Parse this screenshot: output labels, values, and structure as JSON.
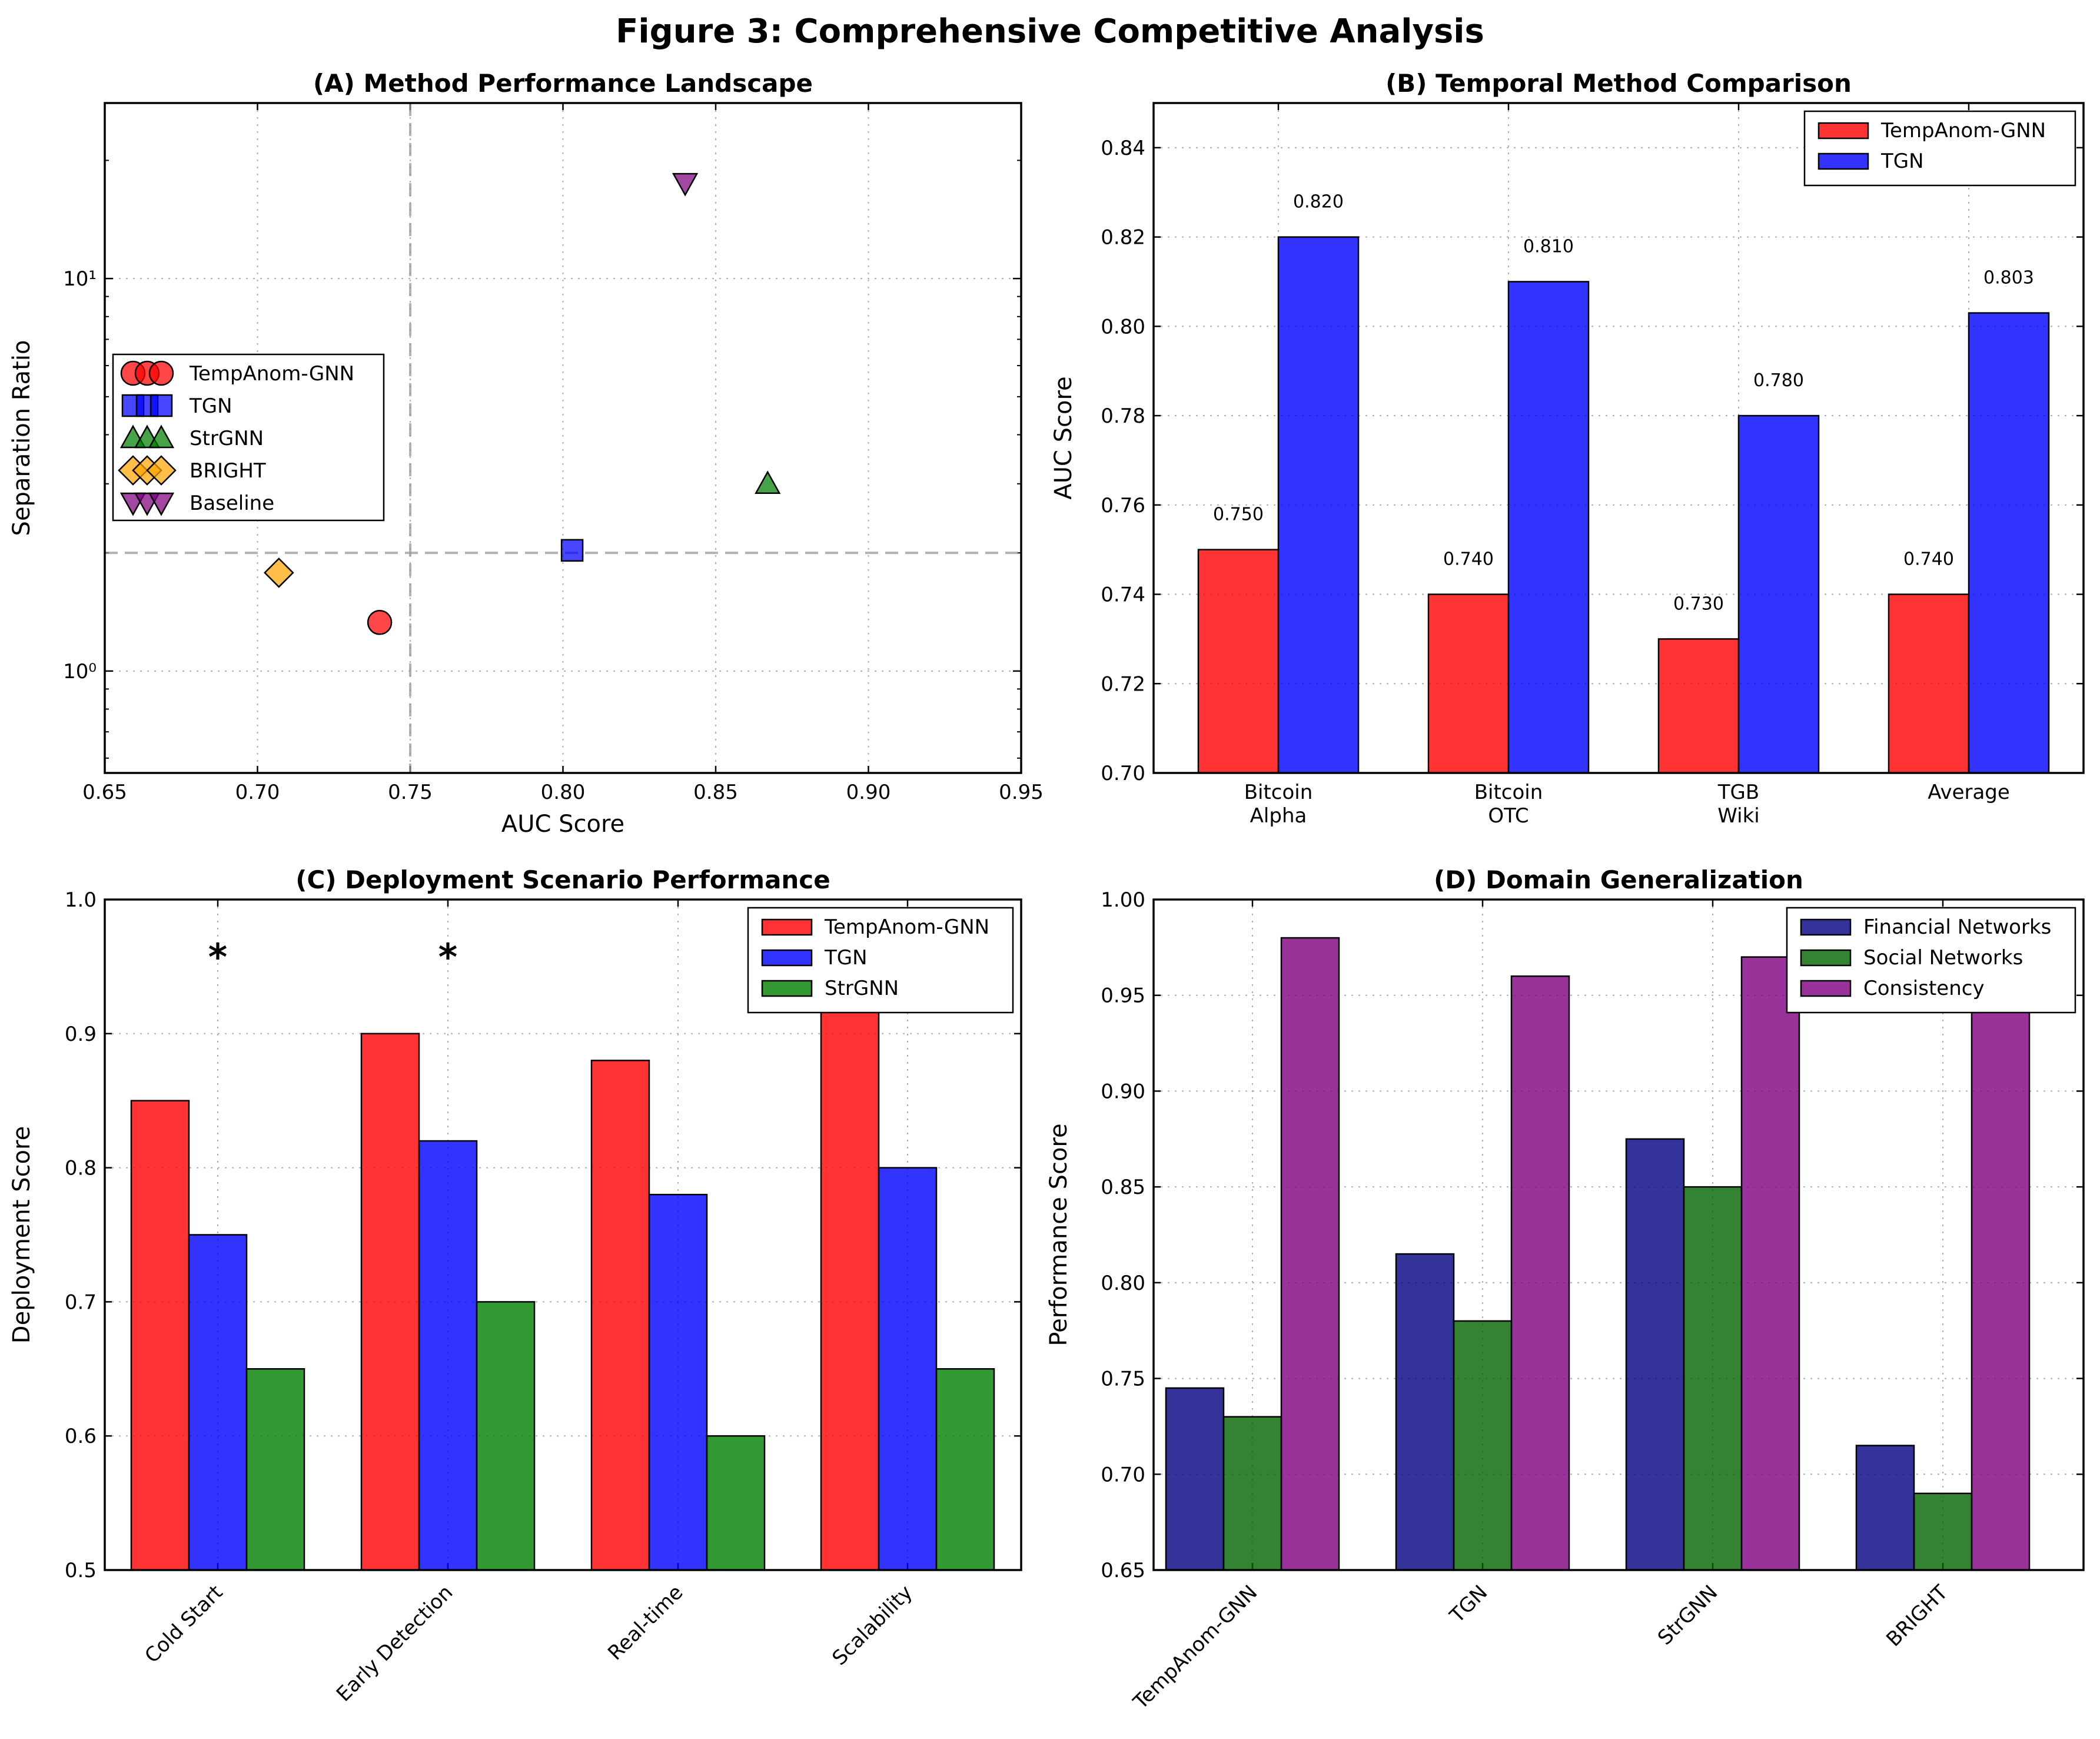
{
  "figure_title": "Figure 3: Comprehensive Competitive Analysis",
  "chart_data": [
    {
      "id": "A",
      "type": "scatter",
      "title": "(A) Method Performance Landscape",
      "xlabel": "AUC Score",
      "ylabel": "Separation Ratio",
      "xlim": [
        0.65,
        0.95
      ],
      "ylim": [
        0.55,
        28
      ],
      "yscale": "log",
      "xticks": [
        0.65,
        0.7,
        0.75,
        0.8,
        0.85,
        0.9,
        0.95
      ],
      "xtick_labels": [
        "0.65",
        "0.70",
        "0.75",
        "0.80",
        "0.85",
        "0.90",
        "0.95"
      ],
      "yticks": [
        1,
        10
      ],
      "ytick_labels": [
        "10⁰",
        "10¹"
      ],
      "grid": true,
      "legend": "center-left",
      "reference_lines": {
        "x": 0.75,
        "y": 2.0
      },
      "series": [
        {
          "name": "TempAnom-GNN",
          "x": 0.74,
          "y": 1.33,
          "marker": "circle",
          "color": "#ff0000"
        },
        {
          "name": "TGN",
          "x": 0.803,
          "y": 2.03,
          "marker": "square",
          "color": "#0000ff"
        },
        {
          "name": "StrGNN",
          "x": 0.867,
          "y": 3.0,
          "marker": "triangle-up",
          "color": "#008000"
        },
        {
          "name": "BRIGHT",
          "x": 0.707,
          "y": 1.78,
          "marker": "diamond",
          "color": "#ffa500"
        },
        {
          "name": "Baseline",
          "x": 0.84,
          "y": 17.5,
          "marker": "triangle-down",
          "color": "#800080"
        }
      ]
    },
    {
      "id": "B",
      "type": "bar",
      "title": "(B) Temporal Method Comparison",
      "xlabel": "",
      "ylabel": "AUC Score",
      "ylim": [
        0.7,
        0.85
      ],
      "yticks": [
        0.7,
        0.72,
        0.74,
        0.76,
        0.78,
        0.8,
        0.82,
        0.84
      ],
      "ytick_labels": [
        "0.70",
        "0.72",
        "0.74",
        "0.76",
        "0.78",
        "0.80",
        "0.82",
        "0.84"
      ],
      "grid": true,
      "legend": "top-right",
      "categories": [
        [
          "Bitcoin",
          "Alpha"
        ],
        [
          "Bitcoin",
          "OTC"
        ],
        [
          "TGB",
          "Wiki"
        ],
        [
          "Average"
        ]
      ],
      "series": [
        {
          "name": "TempAnom-GNN",
          "color": "#ff0000",
          "values": [
            0.75,
            0.74,
            0.73,
            0.74
          ],
          "labels": [
            "0.750",
            "0.740",
            "0.730",
            "0.740"
          ]
        },
        {
          "name": "TGN",
          "color": "#0000ff",
          "values": [
            0.82,
            0.81,
            0.78,
            0.803
          ],
          "labels": [
            "0.820",
            "0.810",
            "0.780",
            "0.803"
          ]
        }
      ]
    },
    {
      "id": "C",
      "type": "bar",
      "title": "(C) Deployment Scenario Performance",
      "xlabel": "",
      "ylabel": "Deployment Score",
      "ylim": [
        0.5,
        1.0
      ],
      "yticks": [
        0.5,
        0.6,
        0.7,
        0.8,
        0.9,
        1.0
      ],
      "ytick_labels": [
        "0.5",
        "0.6",
        "0.7",
        "0.8",
        "0.9",
        "1.0"
      ],
      "grid": true,
      "legend": "top-right",
      "categories": [
        "Cold Start",
        "Early Detection",
        "Real-time",
        "Scalability"
      ],
      "annotations": [
        {
          "category": 0,
          "text": "*",
          "y": 0.965
        },
        {
          "category": 1,
          "text": "*",
          "y": 0.965
        }
      ],
      "series": [
        {
          "name": "TempAnom-GNN",
          "color": "#ff0000",
          "values": [
            0.85,
            0.9,
            0.88,
            0.92
          ]
        },
        {
          "name": "TGN",
          "color": "#0000ff",
          "values": [
            0.75,
            0.82,
            0.78,
            0.8
          ]
        },
        {
          "name": "StrGNN",
          "color": "#008000",
          "values": [
            0.65,
            0.7,
            0.6,
            0.65
          ]
        }
      ]
    },
    {
      "id": "D",
      "type": "bar",
      "title": "(D) Domain Generalization",
      "xlabel": "",
      "ylabel": "Performance Score",
      "ylim": [
        0.65,
        1.0
      ],
      "yticks": [
        0.65,
        0.7,
        0.75,
        0.8,
        0.85,
        0.9,
        0.95,
        1.0
      ],
      "ytick_labels": [
        "0.65",
        "0.70",
        "0.75",
        "0.80",
        "0.85",
        "0.90",
        "0.95",
        "1.00"
      ],
      "grid": true,
      "legend": "top-right",
      "categories": [
        "TempAnom-GNN",
        "TGN",
        "StrGNN",
        "BRIGHT"
      ],
      "series": [
        {
          "name": "Financial Networks",
          "color": "#000080",
          "values": [
            0.745,
            0.815,
            0.875,
            0.715
          ]
        },
        {
          "name": "Social Networks",
          "color": "#006400",
          "values": [
            0.73,
            0.78,
            0.85,
            0.69
          ]
        },
        {
          "name": "Consistency",
          "color": "#800080",
          "values": [
            0.98,
            0.96,
            0.97,
            0.95
          ]
        }
      ]
    }
  ]
}
